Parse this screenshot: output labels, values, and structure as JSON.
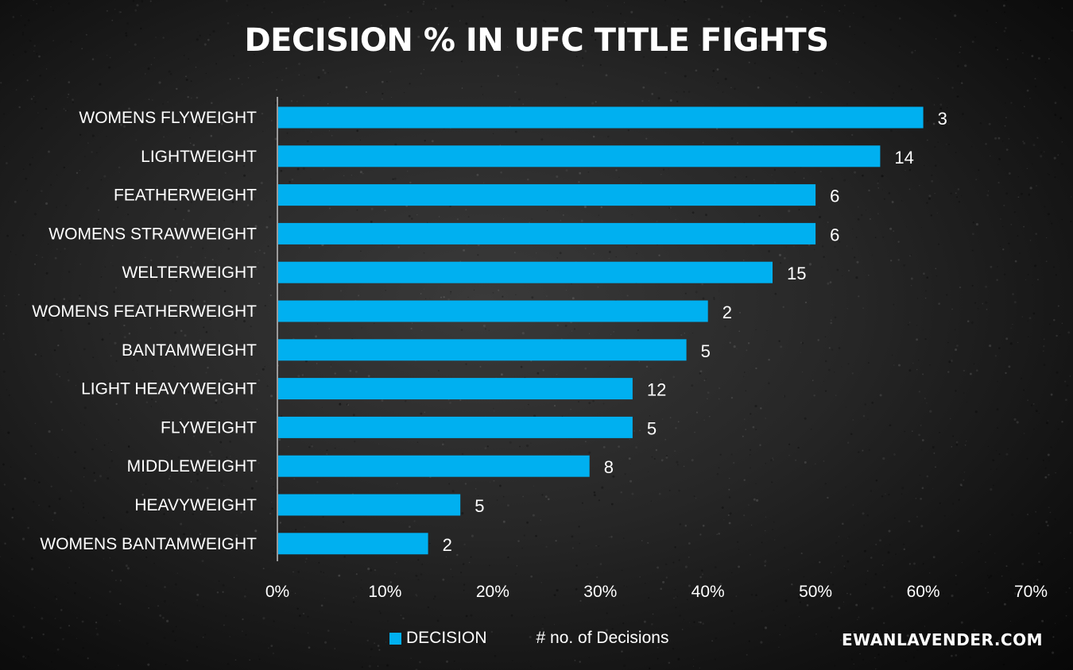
{
  "title": "DECISION % IN UFC TITLE FIGHTS",
  "watermark": "EWANLAVENDER.COM",
  "colors": {
    "bar": "#00B0F0",
    "text": "#FFFFFF",
    "axis": "#BFBFBF"
  },
  "legend": {
    "series_label": "DECISION",
    "count_label": "# no. of Decisions"
  },
  "chart_data": {
    "type": "bar",
    "orientation": "horizontal",
    "title": "DECISION % IN UFC TITLE FIGHTS",
    "xlabel": "",
    "ylabel": "",
    "xlim": [
      0,
      70
    ],
    "x_ticks": [
      "0%",
      "10%",
      "20%",
      "30%",
      "40%",
      "50%",
      "60%",
      "70%"
    ],
    "grid": false,
    "legend_position": "bottom",
    "categories": [
      "WOMENS FLYWEIGHT",
      "LIGHTWEIGHT",
      "FEATHERWEIGHT",
      "WOMENS STRAWWEIGHT",
      "WELTERWEIGHT",
      "WOMENS FEATHERWEIGHT",
      "BANTAMWEIGHT",
      "LIGHT HEAVYWEIGHT",
      "FLYWEIGHT",
      "MIDDLEWEIGHT",
      "HEAVYWEIGHT",
      "WOMENS BANTAMWEIGHT"
    ],
    "series": [
      {
        "name": "DECISION",
        "values": [
          60,
          56,
          50,
          50,
          46,
          40,
          38,
          33,
          33,
          29,
          17,
          14
        ]
      }
    ],
    "data_labels_name": "# no. of Decisions",
    "data_labels": [
      "3",
      "14",
      "6",
      "6",
      "15",
      "2",
      "5",
      "12",
      "5",
      "8",
      "5",
      "2"
    ]
  }
}
